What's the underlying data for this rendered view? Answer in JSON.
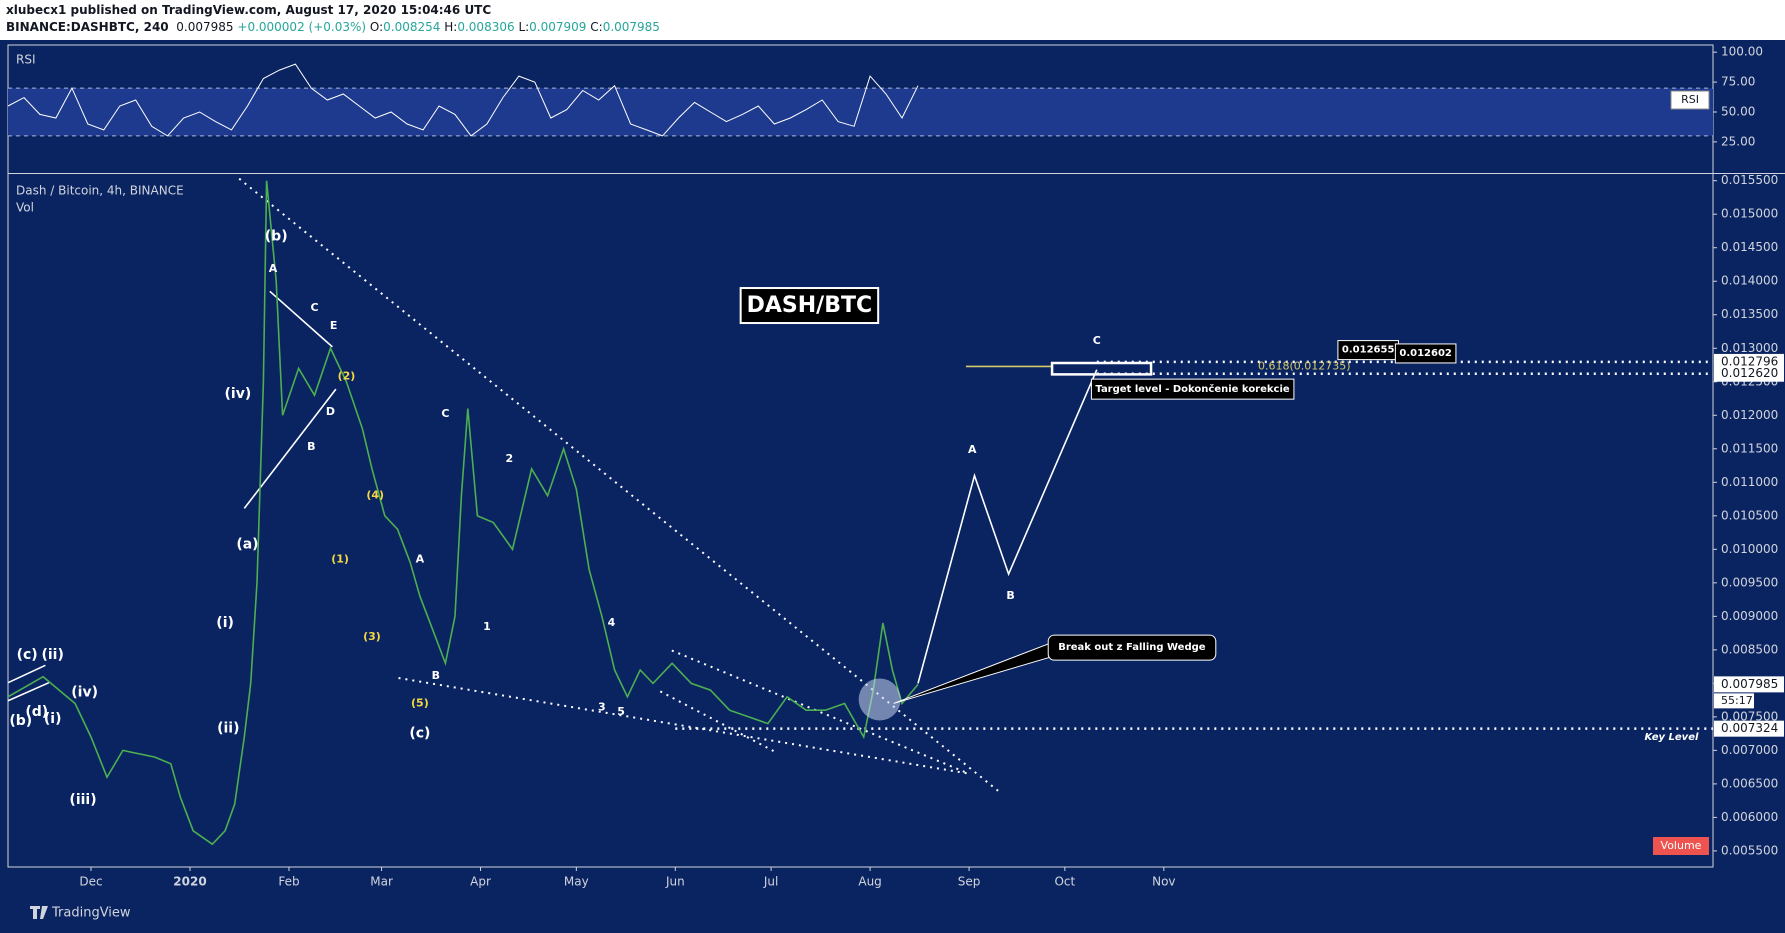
{
  "header": {
    "line1": "xlubecx1 published on TradingView.com, August 17, 2020 15:04:46 UTC",
    "symbol": "BINANCE:DASHBTC, 240",
    "last": "0.007985",
    "change": "+0.000002 (+0.03%)",
    "ohlc": [
      {
        "label": "O:",
        "value": "0.008254"
      },
      {
        "label": "H:",
        "value": "0.008306"
      },
      {
        "label": "L:",
        "value": "0.007909"
      },
      {
        "label": "C:",
        "value": "0.007985"
      }
    ]
  },
  "footer": "TradingView",
  "chart_data": [
    {
      "type": "line",
      "title": "RSI",
      "tag": "RSI",
      "color": "#ffffff",
      "ylim": [
        -1,
        106
      ],
      "yticks": [
        {
          "value": 25,
          "label": "25.00"
        },
        {
          "value": 50,
          "label": "50.00"
        },
        {
          "value": 75,
          "label": "75.00"
        },
        {
          "value": 100,
          "label": "100.00"
        }
      ],
      "bands": [
        30,
        70
      ],
      "x": [
        -26,
        -21,
        -16,
        -11,
        -6,
        -1,
        4,
        9,
        14,
        19,
        24,
        29,
        34,
        39,
        44,
        49,
        54,
        59,
        64,
        69,
        74,
        79,
        84,
        89,
        94,
        99,
        104,
        109,
        114,
        119,
        124,
        129,
        134,
        139,
        144,
        149,
        154,
        159,
        164,
        169,
        174,
        179,
        184,
        189,
        194,
        199,
        204,
        209,
        214,
        219,
        224,
        229,
        234,
        239,
        244,
        249,
        254,
        259
      ],
      "values": [
        55,
        62,
        48,
        45,
        70,
        40,
        35,
        55,
        60,
        38,
        30,
        45,
        50,
        42,
        35,
        55,
        78,
        85,
        90,
        70,
        60,
        65,
        55,
        45,
        50,
        40,
        35,
        55,
        48,
        30,
        40,
        62,
        80,
        75,
        45,
        52,
        68,
        60,
        72,
        40,
        35,
        30,
        45,
        58,
        50,
        42,
        48,
        55,
        40,
        45,
        52,
        60,
        42,
        38,
        80,
        65,
        45,
        72
      ]
    },
    {
      "type": "line",
      "title": "Dash / Bitcoin, 4h, BINANCE",
      "volume_label": "Vol",
      "volume_tag": "Volume",
      "color": "#4caf50",
      "xlim": [
        -26,
        508
      ],
      "ylim": [
        0.00526,
        0.0156
      ],
      "xticks": [
        {
          "value": 0,
          "label": "Dec"
        },
        {
          "value": 31,
          "label": "2020"
        },
        {
          "value": 62,
          "label": "Feb"
        },
        {
          "value": 91,
          "label": "Mar"
        },
        {
          "value": 122,
          "label": "Apr"
        },
        {
          "value": 152,
          "label": "May"
        },
        {
          "value": 183,
          "label": "Jun"
        },
        {
          "value": 213,
          "label": "Jul"
        },
        {
          "value": 244,
          "label": "Aug"
        },
        {
          "value": 275,
          "label": "Sep"
        },
        {
          "value": 305,
          "label": "Oct"
        },
        {
          "value": 336,
          "label": "Nov"
        }
      ],
      "yticks": [
        {
          "value": 0.0055,
          "label": "0.005500"
        },
        {
          "value": 0.006,
          "label": "0.006000"
        },
        {
          "value": 0.0065,
          "label": "0.006500"
        },
        {
          "value": 0.007,
          "label": "0.007000"
        },
        {
          "value": 0.0075,
          "label": "0.007500"
        },
        {
          "value": 0.008,
          "label": "0.008000"
        },
        {
          "value": 0.0085,
          "label": "0.008500"
        },
        {
          "value": 0.009,
          "label": "0.009000"
        },
        {
          "value": 0.0095,
          "label": "0.009500"
        },
        {
          "value": 0.01,
          "label": "0.010000"
        },
        {
          "value": 0.0105,
          "label": "0.010500"
        },
        {
          "value": 0.011,
          "label": "0.011000"
        },
        {
          "value": 0.0115,
          "label": "0.011500"
        },
        {
          "value": 0.012,
          "label": "0.012000"
        },
        {
          "value": 0.0125,
          "label": "0.012500"
        },
        {
          "value": 0.013,
          "label": "0.013000"
        },
        {
          "value": 0.0135,
          "label": "0.013500"
        },
        {
          "value": 0.014,
          "label": "0.014000"
        },
        {
          "value": 0.0145,
          "label": "0.014500"
        },
        {
          "value": 0.015,
          "label": "0.015000"
        },
        {
          "value": 0.0155,
          "label": "0.015500"
        }
      ],
      "x": [
        -26,
        -15,
        -5,
        0,
        5,
        10,
        20,
        25,
        28,
        32,
        38,
        42,
        45,
        48,
        50,
        52,
        54,
        55,
        58,
        60,
        65,
        70,
        75,
        80,
        85,
        88,
        92,
        96,
        100,
        103,
        107,
        111,
        114,
        116,
        118,
        121,
        126,
        132,
        138,
        143,
        148,
        152,
        156,
        160,
        164,
        168,
        172,
        176,
        182,
        188,
        194,
        200,
        206,
        212,
        218,
        224,
        230,
        236,
        242,
        245,
        248,
        251,
        254,
        259
      ],
      "values": [
        0.0078,
        0.0081,
        0.0077,
        0.0072,
        0.0066,
        0.007,
        0.0069,
        0.0068,
        0.0063,
        0.0058,
        0.0056,
        0.0058,
        0.0062,
        0.0072,
        0.008,
        0.0095,
        0.0125,
        0.0155,
        0.014,
        0.012,
        0.0127,
        0.0123,
        0.013,
        0.0125,
        0.0118,
        0.0112,
        0.0105,
        0.0103,
        0.0098,
        0.0093,
        0.0088,
        0.0083,
        0.009,
        0.0108,
        0.0121,
        0.0105,
        0.0104,
        0.01,
        0.0112,
        0.0108,
        0.0115,
        0.0109,
        0.0097,
        0.009,
        0.0082,
        0.0078,
        0.0082,
        0.008,
        0.0083,
        0.008,
        0.0079,
        0.0076,
        0.0075,
        0.0074,
        0.0078,
        0.0076,
        0.0076,
        0.0077,
        0.0072,
        0.0079,
        0.0089,
        0.0082,
        0.0077,
        0.007985
      ],
      "price_tags": [
        {
          "value": 0.012796,
          "label": "0.012796"
        },
        {
          "value": 0.01262,
          "label": "0.012620"
        },
        {
          "value": 0.007985,
          "label": "0.007985"
        },
        {
          "value": 0.007324,
          "label": "0.007324"
        }
      ],
      "countdown": "55:17",
      "levels": [
        {
          "value": 0.007324,
          "from": 183
        },
        {
          "value": 0.012796,
          "from": 315
        },
        {
          "value": 0.01262,
          "from": 315
        }
      ],
      "drawings": [
        {
          "color": "#ffffff",
          "dashed": true,
          "points": [
            [
              46.4,
              0.01553
            ],
            [
              285.3,
              0.00635
            ]
          ]
        },
        {
          "color": "#ffffff",
          "dashed": true,
          "points": [
            [
              96.3,
              0.00808
            ],
            [
              275.3,
              0.00665
            ]
          ]
        },
        {
          "color": "#ffffff",
          "dashed": true,
          "points": [
            [
              181.9,
              0.00849
            ],
            [
              274.6,
              0.00666
            ]
          ]
        },
        {
          "color": "#ffffff",
          "dashed": true,
          "points": [
            [
              178.3,
              0.00788
            ],
            [
              215,
              0.00696
            ]
          ]
        },
        {
          "color": "#ffffff",
          "dashed": false,
          "points": [
            [
              48,
              0.01061
            ],
            [
              76.7,
              0.01239
            ]
          ]
        },
        {
          "color": "#ffffff",
          "dashed": false,
          "points": [
            [
              56,
              0.01385
            ],
            [
              75.6,
              0.01302
            ]
          ]
        },
        {
          "color": "#ffffff",
          "dashed": false,
          "points": [
            [
              -26,
              0.00801
            ],
            [
              -14.3,
              0.00827
            ]
          ]
        },
        {
          "color": "#ffffff",
          "dashed": false,
          "points": [
            [
              -26,
              0.00774
            ],
            [
              -13.2,
              0.00801
            ]
          ]
        },
        {
          "color": "#ffffff",
          "dashed": false,
          "points": [
            [
              259,
              0.008
            ],
            [
              276.7,
              0.0111
            ],
            [
              287.4,
              0.00963
            ],
            [
              315,
              0.01268
            ]
          ]
        },
        {
          "color": "#d4c86a",
          "dashed": false,
          "points": [
            [
              274,
              0.01273
            ],
            [
              301,
              0.01273
            ]
          ]
        }
      ],
      "target_box": {
        "x": [
          301,
          332
        ],
        "y": [
          0.01261,
          0.01278
        ]
      },
      "circle": {
        "x": 247,
        "y": 0.00776
      },
      "wave_labels": [
        {
          "text": "(b)",
          "x": 58,
          "y": 0.01467
        },
        {
          "text": "A",
          "x": 57,
          "y": 0.01418
        },
        {
          "text": "C",
          "x": 70,
          "y": 0.0136
        },
        {
          "text": "E",
          "x": 76,
          "y": 0.01333
        },
        {
          "text": "(iv)",
          "x": 46,
          "y": 0.01232
        },
        {
          "text": "D",
          "x": 75,
          "y": 0.01205
        },
        {
          "text": "B",
          "x": 69,
          "y": 0.01153
        },
        {
          "text": "(a)",
          "x": 49,
          "y": 0.01007
        },
        {
          "text": "(i)",
          "x": 42,
          "y": 0.0089
        },
        {
          "text": "(ii)",
          "x": 43,
          "y": 0.00733
        },
        {
          "text": "(c)",
          "x": 103,
          "y": 0.00725
        },
        {
          "text": "A",
          "x": 103,
          "y": 0.00985
        },
        {
          "text": "B",
          "x": 108,
          "y": 0.00811
        },
        {
          "text": "C",
          "x": 111,
          "y": 0.01202
        },
        {
          "text": "1",
          "x": 124,
          "y": 0.00884
        },
        {
          "text": "2",
          "x": 131,
          "y": 0.01135
        },
        {
          "text": "3",
          "x": 160,
          "y": 0.00764
        },
        {
          "text": "4",
          "x": 163,
          "y": 0.0089
        },
        {
          "text": "5",
          "x": 166,
          "y": 0.00757
        },
        {
          "text": "(iii)",
          "x": -2.5,
          "y": 0.00626
        },
        {
          "text": "(iv)",
          "x": -2,
          "y": 0.00786
        },
        {
          "text": "(i)",
          "x": -12,
          "y": 0.00747
        },
        {
          "text": "(d)",
          "x": -17,
          "y": 0.00757
        },
        {
          "text": "(b)",
          "x": -22,
          "y": 0.00744
        },
        {
          "text": "(c)",
          "x": -20,
          "y": 0.00842
        },
        {
          "text": "(ii)",
          "x": -12,
          "y": 0.00842
        },
        {
          "text": "A",
          "x": 276,
          "y": 0.01148
        },
        {
          "text": "B",
          "x": 288,
          "y": 0.0093
        },
        {
          "text": "C",
          "x": 315,
          "y": 0.01311
        }
      ],
      "subwave_labels": {
        "color": "#f5d742",
        "items": [
          {
            "text": "(2)",
            "x": 80,
            "y": 0.01258
          },
          {
            "text": "(4)",
            "x": 89,
            "y": 0.0108
          },
          {
            "text": "(1)",
            "x": 78,
            "y": 0.00985
          },
          {
            "text": "(3)",
            "x": 88,
            "y": 0.00869
          },
          {
            "text": "(5)",
            "x": 103,
            "y": 0.0077
          }
        ]
      },
      "notes": [
        {
          "text": "DASH/BTC",
          "x": 225,
          "y": 0.01363,
          "style": "title"
        },
        {
          "text": "Break out z Falling Wedge",
          "x": 326,
          "y": 0.00854,
          "style": "callout"
        },
        {
          "text": "Target level - Dokončenie korekcie",
          "x": 345,
          "y": 0.01239,
          "style": "box"
        },
        {
          "text": "0.618(0.012735)",
          "x": 380,
          "y": 0.01273,
          "style": "fib"
        },
        {
          "text": "0.012655",
          "x": 400,
          "y": 0.01298,
          "style": "box"
        },
        {
          "text": "0.012602",
          "x": 418,
          "y": 0.01293,
          "style": "box"
        },
        {
          "text": "Key Level",
          "x": 495,
          "y": 0.0072,
          "style": "italic"
        }
      ]
    }
  ]
}
